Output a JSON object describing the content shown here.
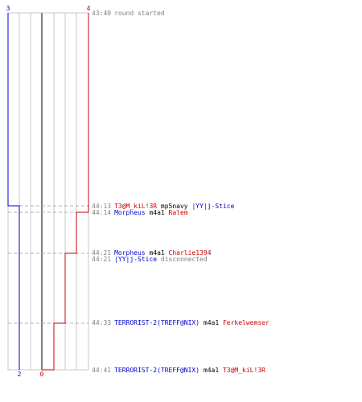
{
  "timeline": {
    "start": {
      "time": "43:40",
      "text": "round started"
    },
    "blue_team": {
      "start_score": "3",
      "end_score": "2",
      "color": "#0000cc"
    },
    "red_team": {
      "start_score": "4",
      "end_score": "0",
      "color": "#cc0000"
    },
    "events": [
      {
        "time": "44:13",
        "parts": [
          {
            "text": "T3@M_kiL!3R",
            "tone": "red"
          },
          {
            "text": " mp5navy ",
            "tone": "black"
          },
          {
            "text": "|YY|j-Stice",
            "tone": "blue"
          }
        ]
      },
      {
        "time": "44:14",
        "parts": [
          {
            "text": "Morpheus",
            "tone": "blue"
          },
          {
            "text": " m4a1 ",
            "tone": "black"
          },
          {
            "text": "Ralem",
            "tone": "red"
          }
        ]
      },
      {
        "time": "44:21",
        "parts": [
          {
            "text": "Morpheus",
            "tone": "blue"
          },
          {
            "text": " m4a1 ",
            "tone": "black"
          },
          {
            "text": "Charlie1394",
            "tone": "red"
          }
        ]
      },
      {
        "time": "44:21",
        "parts": [
          {
            "text": "|YY|j-Stice",
            "tone": "blue"
          },
          {
            "text": " disconnected",
            "tone": "gray"
          }
        ]
      },
      {
        "time": "44:33",
        "parts": [
          {
            "text": "TERRORIST-2(TREFF@NIX)",
            "tone": "blue"
          },
          {
            "text": " m4a1 ",
            "tone": "black"
          },
          {
            "text": "Ferkelwemser",
            "tone": "red"
          }
        ]
      },
      {
        "time": "44:41",
        "parts": [
          {
            "text": "TERRORIST-2(TREFF@NIX)",
            "tone": "blue"
          },
          {
            "text": " m4a1 ",
            "tone": "black"
          },
          {
            "text": "T3@M_kiL!3R",
            "tone": "red"
          }
        ]
      }
    ]
  }
}
